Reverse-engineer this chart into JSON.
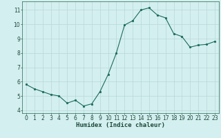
{
  "x": [
    0,
    1,
    2,
    3,
    4,
    5,
    6,
    7,
    8,
    9,
    10,
    11,
    12,
    13,
    14,
    15,
    16,
    17,
    18,
    19,
    20,
    21,
    22,
    23
  ],
  "y": [
    5.8,
    5.5,
    5.3,
    5.1,
    5.0,
    4.5,
    4.7,
    4.3,
    4.45,
    5.3,
    6.5,
    8.0,
    9.95,
    10.25,
    11.0,
    11.15,
    10.65,
    10.45,
    9.35,
    9.15,
    8.4,
    8.55,
    8.6,
    8.8
  ],
  "xlim": [
    -0.5,
    23.5
  ],
  "ylim": [
    3.8,
    11.6
  ],
  "yticks": [
    4,
    5,
    6,
    7,
    8,
    9,
    10,
    11
  ],
  "xticks": [
    0,
    1,
    2,
    3,
    4,
    5,
    6,
    7,
    8,
    9,
    10,
    11,
    12,
    13,
    14,
    15,
    16,
    17,
    18,
    19,
    20,
    21,
    22,
    23
  ],
  "xlabel": "Humidex (Indice chaleur)",
  "line_color": "#1a6b5a",
  "marker": "o",
  "marker_size": 1.8,
  "bg_color": "#d4efef",
  "grid_color": "#b8d8d8",
  "axis_color": "#3a7a6a",
  "tick_color": "#1a4a3a",
  "label_color": "#1a4a3a",
  "xlabel_fontsize": 6.5,
  "tick_fontsize": 5.5
}
